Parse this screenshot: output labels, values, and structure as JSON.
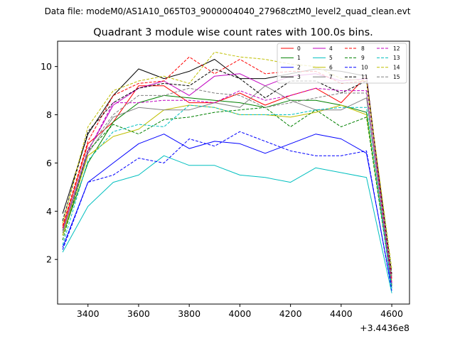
{
  "chart_data": {
    "type": "line",
    "suptitle": "Data file: modeM0/AS1A10_065T03_9000004040_27968cztM0_level2_quad_clean.evt",
    "title": "Quadrant 3 module wise count rates with 100.0s bins.",
    "xlabel": "",
    "ylabel": "",
    "x_offset_label": "+3.4436e8",
    "x": [
      3300,
      3400,
      3500,
      3600,
      3700,
      3800,
      3900,
      4000,
      4100,
      4200,
      4300,
      4400,
      4500,
      4600
    ],
    "xlim": [
      3280,
      4670
    ],
    "ylim": [
      0.15,
      11.05
    ],
    "xticks": [
      3400,
      3600,
      3800,
      4000,
      4200,
      4400,
      4600
    ],
    "yticks": [
      2,
      4,
      6,
      8,
      10
    ],
    "legend_position": "top-right",
    "series": [
      {
        "name": "0",
        "color": "#ff0000",
        "style": "solid",
        "values": [
          3.3,
          6.8,
          7.7,
          9.2,
          9.2,
          8.5,
          8.5,
          8.9,
          8.4,
          8.8,
          9.1,
          8.5,
          9.6,
          1.0
        ]
      },
      {
        "name": "1",
        "color": "#008000",
        "style": "solid",
        "values": [
          3.0,
          6.0,
          7.7,
          8.5,
          8.8,
          8.7,
          8.6,
          8.5,
          8.3,
          8.6,
          8.6,
          8.4,
          8.1,
          0.9
        ]
      },
      {
        "name": "2",
        "color": "#0000ff",
        "style": "solid",
        "values": [
          2.5,
          5.2,
          6.0,
          6.8,
          7.2,
          6.6,
          6.9,
          6.8,
          6.4,
          6.8,
          7.2,
          7.0,
          6.4,
          0.8
        ]
      },
      {
        "name": "3",
        "color": "#000000",
        "style": "solid",
        "values": [
          3.9,
          7.2,
          8.8,
          9.9,
          9.5,
          9.8,
          10.3,
          9.5,
          9.5,
          9.7,
          9.9,
          9.8,
          9.6,
          1.0
        ]
      },
      {
        "name": "4",
        "color": "#c000c0",
        "style": "solid",
        "values": [
          3.2,
          6.5,
          8.4,
          9.1,
          9.4,
          8.8,
          9.6,
          9.7,
          9.2,
          9.6,
          9.7,
          9.4,
          9.5,
          1.0
        ]
      },
      {
        "name": "5",
        "color": "#00bfbf",
        "style": "solid",
        "values": [
          2.3,
          4.2,
          5.2,
          5.5,
          6.3,
          5.9,
          5.9,
          5.5,
          5.4,
          5.2,
          5.8,
          5.6,
          5.4,
          0.6
        ]
      },
      {
        "name": "6",
        "color": "#bfbf00",
        "style": "solid",
        "values": [
          3.0,
          6.3,
          7.1,
          7.4,
          8.2,
          8.4,
          8.3,
          8.0,
          8.0,
          7.9,
          8.1,
          8.4,
          8.0,
          1.1
        ]
      },
      {
        "name": "7",
        "color": "#808080",
        "style": "solid",
        "values": [
          3.1,
          6.4,
          7.9,
          8.3,
          8.2,
          8.2,
          8.5,
          8.3,
          9.2,
          8.6,
          8.2,
          8.2,
          8.7,
          0.9
        ]
      },
      {
        "name": "8",
        "color": "#ff0000",
        "style": "dashed",
        "values": [
          3.4,
          6.9,
          8.8,
          9.3,
          9.4,
          10.4,
          9.7,
          10.3,
          9.7,
          9.8,
          9.8,
          9.3,
          9.4,
          1.2
        ]
      },
      {
        "name": "9",
        "color": "#008000",
        "style": "dashed",
        "values": [
          2.8,
          6.5,
          7.6,
          7.2,
          7.8,
          7.9,
          8.1,
          8.2,
          8.3,
          7.5,
          8.2,
          7.5,
          7.9,
          0.9
        ]
      },
      {
        "name": "10",
        "color": "#0000ff",
        "style": "dashed",
        "values": [
          2.4,
          5.2,
          5.5,
          6.2,
          6.0,
          7.0,
          6.7,
          7.3,
          6.9,
          6.5,
          6.3,
          6.3,
          6.5,
          0.7
        ]
      },
      {
        "name": "11",
        "color": "#000000",
        "style": "dashed",
        "values": [
          3.6,
          7.3,
          8.5,
          9.1,
          9.3,
          9.2,
          9.9,
          9.5,
          8.7,
          9.4,
          9.4,
          8.9,
          9.4,
          1.4
        ]
      },
      {
        "name": "12",
        "color": "#c000c0",
        "style": "dashed",
        "values": [
          3.2,
          6.5,
          8.5,
          8.5,
          8.6,
          8.6,
          8.5,
          9.0,
          8.6,
          8.8,
          9.1,
          9.0,
          9.0,
          1.0
        ]
      },
      {
        "name": "13",
        "color": "#00bfbf",
        "style": "dashed",
        "values": [
          2.6,
          6.1,
          7.3,
          7.6,
          7.5,
          8.4,
          8.3,
          8.0,
          8.0,
          8.0,
          8.2,
          8.3,
          8.3,
          0.8
        ]
      },
      {
        "name": "14",
        "color": "#bfbf00",
        "style": "dashed",
        "values": [
          3.5,
          7.5,
          9.0,
          9.4,
          9.6,
          9.3,
          10.6,
          10.4,
          10.3,
          10.1,
          10.0,
          9.5,
          9.4,
          1.6
        ]
      },
      {
        "name": "15",
        "color": "#808080",
        "style": "dashed",
        "values": [
          3.2,
          6.6,
          8.0,
          8.8,
          8.8,
          9.1,
          8.9,
          8.8,
          8.3,
          8.5,
          8.7,
          8.9,
          8.9,
          1.3
        ]
      }
    ]
  }
}
